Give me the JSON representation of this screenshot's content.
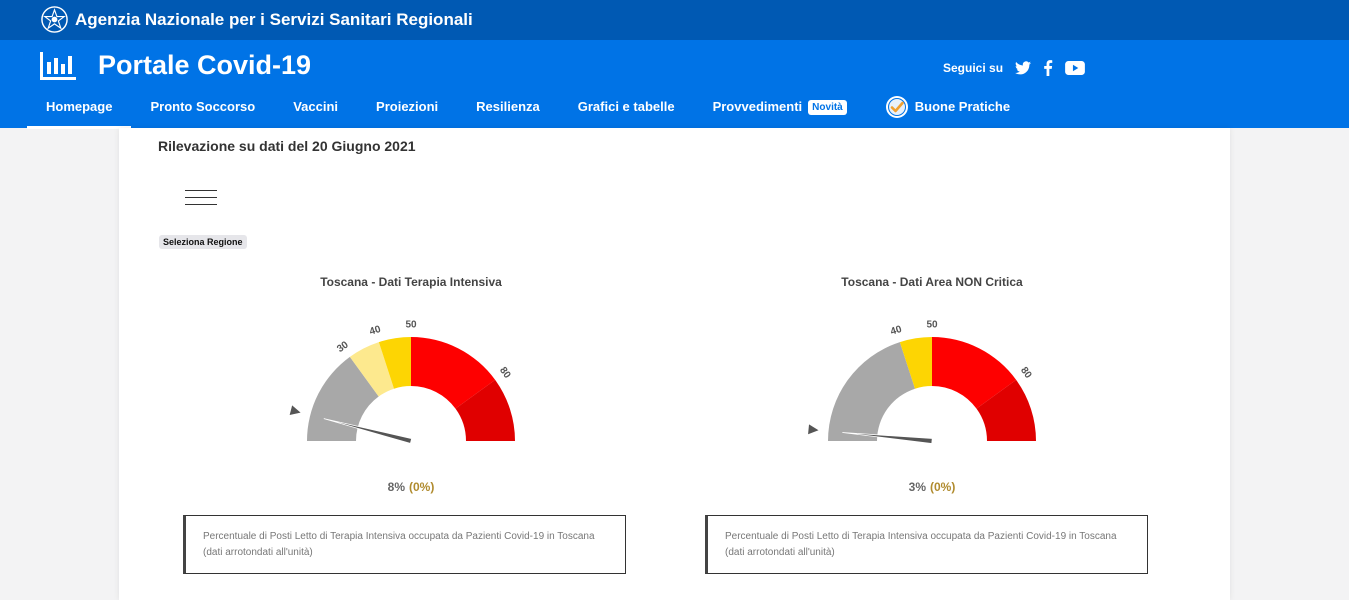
{
  "header": {
    "agency_name": "Agenzia Nazionale per i Servizi Sanitari Regionali",
    "portal_title": "Portale Covid-19",
    "social_label": "Seguici su",
    "social_icons": [
      "twitter-icon",
      "facebook-icon",
      "youtube-icon"
    ]
  },
  "nav": {
    "items": [
      {
        "label": "Homepage",
        "active": true
      },
      {
        "label": "Pronto Soccorso"
      },
      {
        "label": "Vaccini"
      },
      {
        "label": "Proiezioni"
      },
      {
        "label": "Resilienza"
      },
      {
        "label": "Grafici e tabelle"
      },
      {
        "label": "Provvedimenti",
        "badge": "Novità"
      },
      {
        "label": "Buone Pratiche",
        "icon": "checkmark-badge-icon"
      }
    ]
  },
  "main": {
    "rilevazione": "Rilevazione su dati del 20 Giugno 2021",
    "region_button": "Seleziona Regione",
    "gauges": [
      {
        "title": "Toscana - Dati Terapia Intensiva",
        "value_text": "8%",
        "delta_text": "(0%)",
        "description_line1": "Percentuale di Posti Letto di Terapia Intensiva occupata da Pazienti Covid-19 in Toscana",
        "description_line2": "(dati arrotondati all'unità)"
      },
      {
        "title": "Toscana - Dati Area NON Critica",
        "value_text": "3%",
        "delta_text": "(0%)",
        "description_line1": "Percentuale di Posti Letto di Terapia Intensiva occupata da Pazienti Covid-19 in Toscana",
        "description_line2": "(dati arrotondati all'unità)"
      }
    ]
  },
  "chart_data": [
    {
      "type": "gauge",
      "title": "Toscana - Dati Terapia Intensiva",
      "min": 0,
      "max": 100,
      "value": 8,
      "delta": 0,
      "bands": [
        {
          "from": 0,
          "to": 30,
          "color": "#a8a8a8"
        },
        {
          "from": 30,
          "to": 40,
          "color": "#fde98e"
        },
        {
          "from": 40,
          "to": 50,
          "color": "#fdd503"
        },
        {
          "from": 50,
          "to": 80,
          "color": "#fe0000"
        },
        {
          "from": 80,
          "to": 100,
          "color": "#e00000"
        }
      ],
      "tick_labels": [
        "30",
        "40",
        "50",
        "80"
      ],
      "ticks": [
        30,
        40,
        50,
        80
      ]
    },
    {
      "type": "gauge",
      "title": "Toscana - Dati Area NON Critica",
      "min": 0,
      "max": 100,
      "value": 3,
      "delta": 0,
      "bands": [
        {
          "from": 0,
          "to": 40,
          "color": "#a8a8a8"
        },
        {
          "from": 40,
          "to": 50,
          "color": "#fdd503"
        },
        {
          "from": 50,
          "to": 80,
          "color": "#fe0000"
        },
        {
          "from": 80,
          "to": 100,
          "color": "#e00000"
        }
      ],
      "tick_labels": [
        "40",
        "50",
        "80"
      ],
      "ticks": [
        40,
        50,
        80
      ]
    }
  ]
}
